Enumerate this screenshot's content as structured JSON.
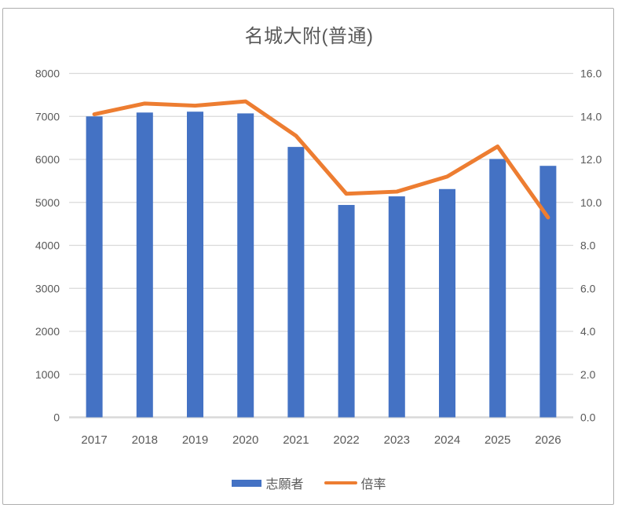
{
  "title": "名城大附(普通)",
  "legend": {
    "bar_label": "志願者",
    "line_label": "倍率"
  },
  "chart_data": {
    "type": "bar",
    "subtype": "combo-bar-line-dual-axis",
    "title": "名城大附(普通)",
    "categories": [
      "2017",
      "2018",
      "2019",
      "2020",
      "2021",
      "2022",
      "2023",
      "2024",
      "2025",
      "2026"
    ],
    "series": [
      {
        "name": "志願者",
        "type": "bar",
        "axis": "left",
        "color": "#4472C4",
        "values": [
          7000,
          7090,
          7110,
          7070,
          6290,
          4940,
          5140,
          5310,
          6010,
          5850
        ]
      },
      {
        "name": "倍率",
        "type": "line",
        "axis": "right",
        "color": "#ED7D31",
        "values": [
          14.1,
          14.6,
          14.5,
          14.7,
          13.1,
          10.4,
          10.5,
          11.2,
          12.6,
          9.3
        ]
      }
    ],
    "left_axis": {
      "min": 0,
      "max": 8000,
      "step": 1000,
      "tick_labels_top_to_bottom": [
        "8000",
        "7000",
        "6000",
        "5000",
        "4000",
        "3000",
        "2000",
        "1000",
        "0"
      ]
    },
    "right_axis": {
      "min": 0,
      "max": 16,
      "step": 2,
      "tick_labels_top_to_bottom": [
        "16.0",
        "14.0",
        "12.0",
        "10.0",
        "8.0",
        "6.0",
        "4.0",
        "2.0",
        "0.0"
      ]
    },
    "grid": true,
    "legend_position": "bottom",
    "colors": {
      "bar": "#4472C4",
      "line": "#ED7D31",
      "text": "#595959",
      "gridline": "#D9D9D9",
      "axis_line": "#D9D9D9",
      "background": "#FFFFFF"
    }
  }
}
